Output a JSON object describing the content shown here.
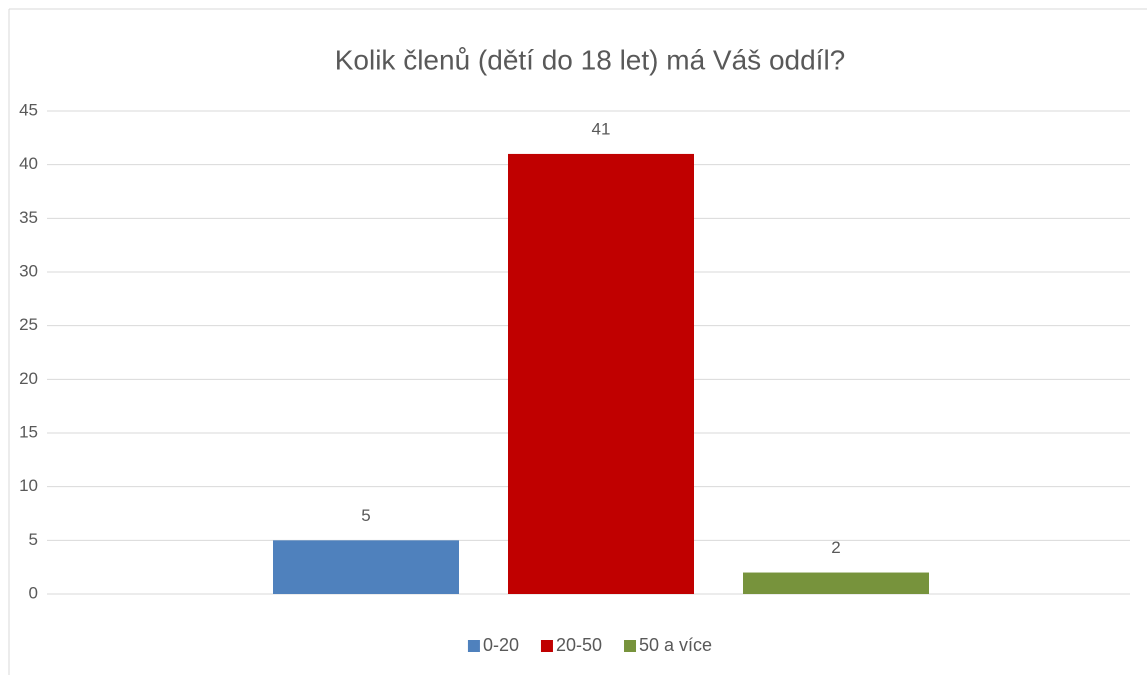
{
  "chart_data": {
    "type": "bar",
    "title": "Kolik členů (dětí do 18 let) má Váš oddíl?",
    "categories": [
      null
    ],
    "series": [
      {
        "name": "0-20",
        "color": "#4f81bd",
        "values": [
          5
        ]
      },
      {
        "name": "20-50",
        "color": "#c00000",
        "values": [
          41
        ]
      },
      {
        "name": "50 a více",
        "color": "#77933c",
        "values": [
          2
        ]
      }
    ],
    "ylim": [
      0,
      45
    ],
    "yticks": [
      0,
      5,
      10,
      15,
      20,
      25,
      30,
      35,
      40,
      45
    ],
    "grid": true,
    "legend": "bottom"
  }
}
